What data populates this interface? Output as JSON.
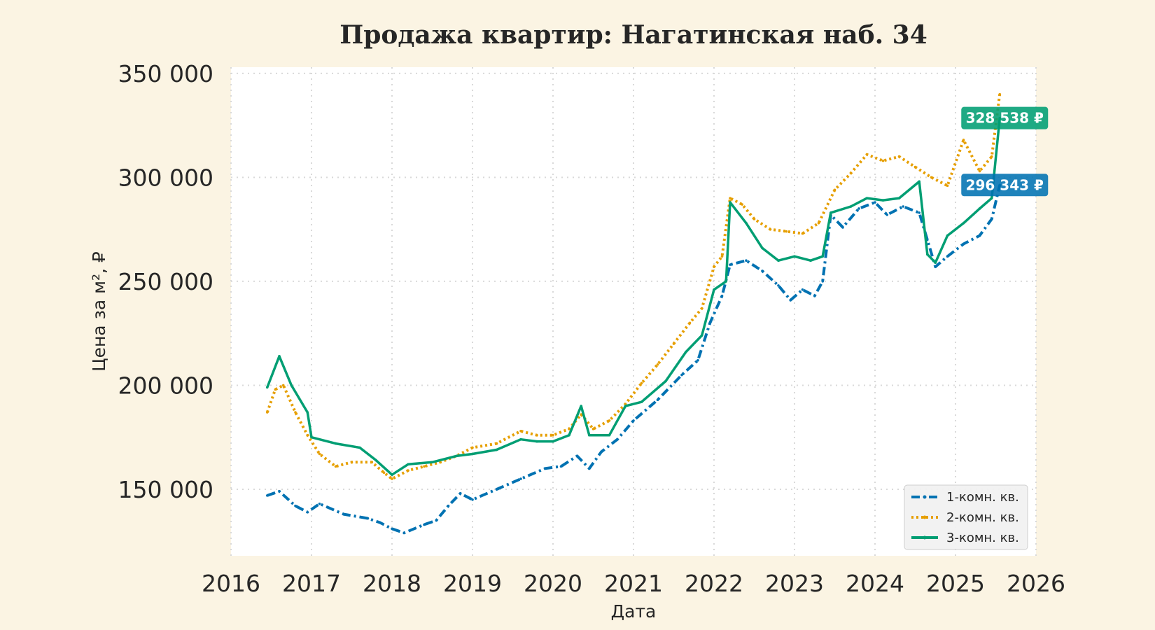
{
  "chart_data": {
    "type": "line",
    "title": "Продажа квартир: Нагатинская наб. 34",
    "xlabel": "Дата",
    "ylabel": "Цена за м², ₽",
    "xlim": [
      2016,
      2026
    ],
    "ylim": [
      118000,
      353000
    ],
    "x_ticks": [
      "2016",
      "2017",
      "2018",
      "2019",
      "2020",
      "2021",
      "2022",
      "2023",
      "2024",
      "2025",
      "2026"
    ],
    "y_ticks": [
      {
        "value": 150000,
        "label": "150 000"
      },
      {
        "value": 200000,
        "label": "200 000"
      },
      {
        "value": 250000,
        "label": "250 000"
      },
      {
        "value": 300000,
        "label": "300 000"
      },
      {
        "value": 350000,
        "label": "350 000"
      }
    ],
    "grid": true,
    "legend_position": "lower-right",
    "series": [
      {
        "name": "1-комн. кв.",
        "color": "#0072b2",
        "style": "dashdot",
        "end_label": "296 343 ₽",
        "points": [
          [
            2016.45,
            147000
          ],
          [
            2016.6,
            149000
          ],
          [
            2016.8,
            142000
          ],
          [
            2016.95,
            139000
          ],
          [
            2017.1,
            143000
          ],
          [
            2017.4,
            138000
          ],
          [
            2017.7,
            136000
          ],
          [
            2017.85,
            134000
          ],
          [
            2018.0,
            131000
          ],
          [
            2018.15,
            129000
          ],
          [
            2018.4,
            133000
          ],
          [
            2018.55,
            135000
          ],
          [
            2018.7,
            142000
          ],
          [
            2018.85,
            148000
          ],
          [
            2019.0,
            145000
          ],
          [
            2019.3,
            150000
          ],
          [
            2019.6,
            155000
          ],
          [
            2019.9,
            160000
          ],
          [
            2020.1,
            161000
          ],
          [
            2020.3,
            166000
          ],
          [
            2020.45,
            160000
          ],
          [
            2020.6,
            168000
          ],
          [
            2020.8,
            174000
          ],
          [
            2021.0,
            183000
          ],
          [
            2021.3,
            193000
          ],
          [
            2021.6,
            205000
          ],
          [
            2021.8,
            212000
          ],
          [
            2021.95,
            230000
          ],
          [
            2022.1,
            243000
          ],
          [
            2022.2,
            258000
          ],
          [
            2022.4,
            260000
          ],
          [
            2022.6,
            255000
          ],
          [
            2022.8,
            248000
          ],
          [
            2022.95,
            241000
          ],
          [
            2023.1,
            246000
          ],
          [
            2023.25,
            243000
          ],
          [
            2023.35,
            250000
          ],
          [
            2023.45,
            282000
          ],
          [
            2023.6,
            276000
          ],
          [
            2023.8,
            285000
          ],
          [
            2024.0,
            288000
          ],
          [
            2024.15,
            282000
          ],
          [
            2024.35,
            286000
          ],
          [
            2024.55,
            283000
          ],
          [
            2024.65,
            270000
          ],
          [
            2024.75,
            257000
          ],
          [
            2024.9,
            262000
          ],
          [
            2025.1,
            268000
          ],
          [
            2025.3,
            272000
          ],
          [
            2025.45,
            280000
          ],
          [
            2025.55,
            296343
          ]
        ]
      },
      {
        "name": "2-комн. кв.",
        "color": "#e69f00",
        "style": "dotted",
        "end_label": "",
        "points": [
          [
            2016.45,
            187000
          ],
          [
            2016.55,
            198000
          ],
          [
            2016.65,
            200000
          ],
          [
            2016.8,
            187000
          ],
          [
            2016.95,
            176000
          ],
          [
            2017.1,
            167000
          ],
          [
            2017.3,
            161000
          ],
          [
            2017.5,
            163000
          ],
          [
            2017.75,
            163000
          ],
          [
            2017.9,
            158000
          ],
          [
            2018.0,
            155000
          ],
          [
            2018.2,
            159000
          ],
          [
            2018.4,
            161000
          ],
          [
            2018.6,
            163000
          ],
          [
            2018.8,
            166000
          ],
          [
            2019.0,
            170000
          ],
          [
            2019.3,
            172000
          ],
          [
            2019.6,
            178000
          ],
          [
            2019.8,
            176000
          ],
          [
            2020.0,
            176000
          ],
          [
            2020.2,
            179000
          ],
          [
            2020.35,
            186000
          ],
          [
            2020.5,
            179000
          ],
          [
            2020.7,
            183000
          ],
          [
            2020.9,
            191000
          ],
          [
            2021.1,
            201000
          ],
          [
            2021.3,
            210000
          ],
          [
            2021.5,
            220000
          ],
          [
            2021.7,
            230000
          ],
          [
            2021.85,
            237000
          ],
          [
            2022.0,
            257000
          ],
          [
            2022.1,
            262000
          ],
          [
            2022.2,
            290000
          ],
          [
            2022.35,
            287000
          ],
          [
            2022.5,
            280000
          ],
          [
            2022.7,
            275000
          ],
          [
            2022.9,
            274000
          ],
          [
            2023.1,
            273000
          ],
          [
            2023.3,
            278000
          ],
          [
            2023.5,
            294000
          ],
          [
            2023.7,
            302000
          ],
          [
            2023.9,
            311000
          ],
          [
            2024.1,
            308000
          ],
          [
            2024.3,
            310000
          ],
          [
            2024.5,
            305000
          ],
          [
            2024.7,
            300000
          ],
          [
            2024.9,
            296000
          ],
          [
            2025.1,
            318000
          ],
          [
            2025.3,
            303000
          ],
          [
            2025.45,
            310000
          ],
          [
            2025.55,
            340000
          ]
        ]
      },
      {
        "name": "3-комн. кв.",
        "color": "#009e73",
        "style": "solid",
        "end_label": "328 538 ₽",
        "points": [
          [
            2016.45,
            199000
          ],
          [
            2016.6,
            214000
          ],
          [
            2016.75,
            200000
          ],
          [
            2016.95,
            187000
          ],
          [
            2017.0,
            175000
          ],
          [
            2017.3,
            172000
          ],
          [
            2017.6,
            170000
          ],
          [
            2017.8,
            164000
          ],
          [
            2018.0,
            157000
          ],
          [
            2018.2,
            162000
          ],
          [
            2018.5,
            163000
          ],
          [
            2018.8,
            166000
          ],
          [
            2019.0,
            167000
          ],
          [
            2019.3,
            169000
          ],
          [
            2019.6,
            174000
          ],
          [
            2019.8,
            173000
          ],
          [
            2020.0,
            173000
          ],
          [
            2020.2,
            176000
          ],
          [
            2020.35,
            190000
          ],
          [
            2020.45,
            176000
          ],
          [
            2020.7,
            176000
          ],
          [
            2020.9,
            190000
          ],
          [
            2021.1,
            192000
          ],
          [
            2021.4,
            202000
          ],
          [
            2021.65,
            216000
          ],
          [
            2021.85,
            224000
          ],
          [
            2022.0,
            246000
          ],
          [
            2022.15,
            250000
          ],
          [
            2022.2,
            288000
          ],
          [
            2022.4,
            278000
          ],
          [
            2022.6,
            266000
          ],
          [
            2022.8,
            260000
          ],
          [
            2023.0,
            262000
          ],
          [
            2023.2,
            260000
          ],
          [
            2023.35,
            262000
          ],
          [
            2023.45,
            283000
          ],
          [
            2023.7,
            286000
          ],
          [
            2023.9,
            290000
          ],
          [
            2024.1,
            289000
          ],
          [
            2024.3,
            290000
          ],
          [
            2024.55,
            298000
          ],
          [
            2024.65,
            263000
          ],
          [
            2024.75,
            259000
          ],
          [
            2024.9,
            272000
          ],
          [
            2025.1,
            278000
          ],
          [
            2025.3,
            285000
          ],
          [
            2025.45,
            290000
          ],
          [
            2025.55,
            328538
          ]
        ]
      }
    ]
  }
}
